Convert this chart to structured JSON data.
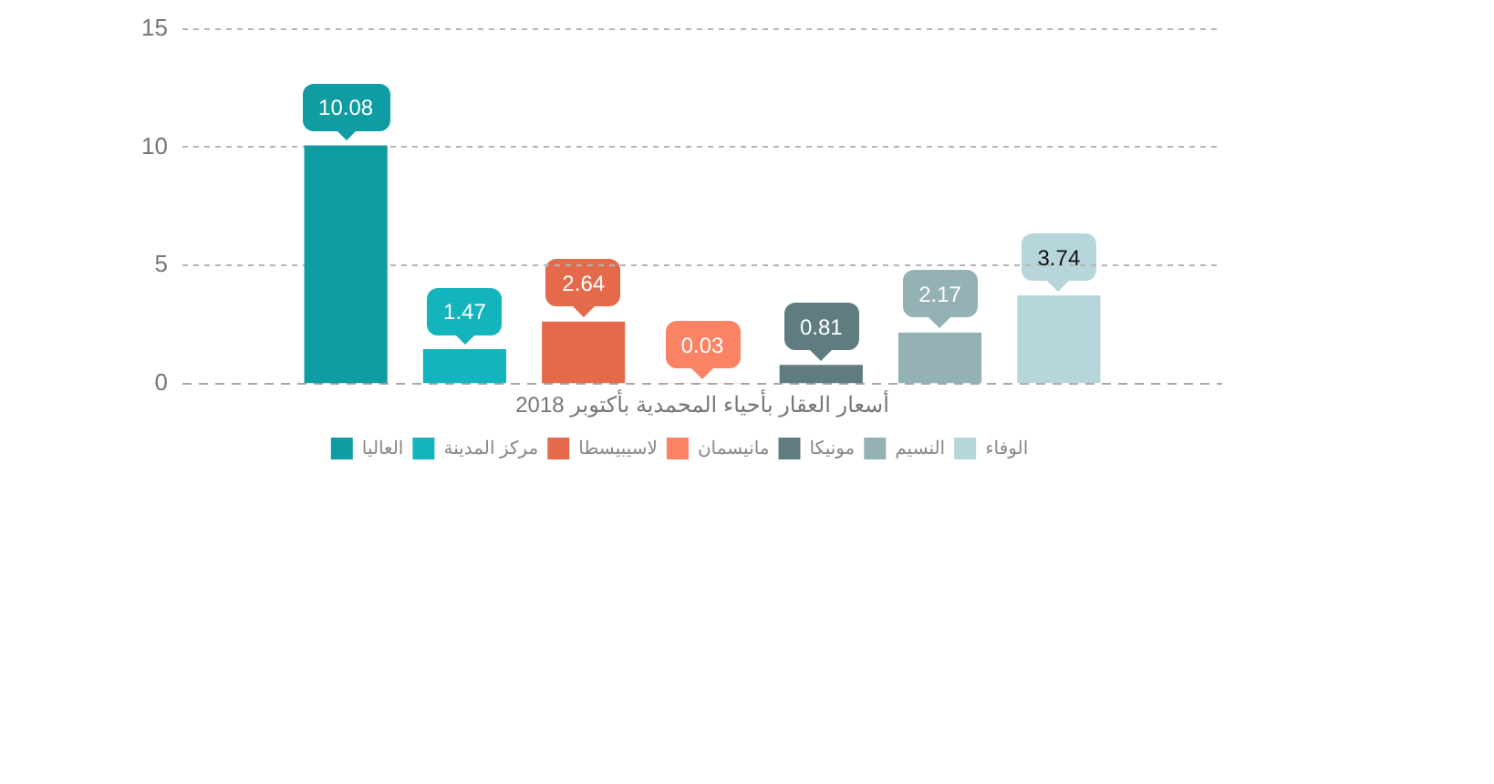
{
  "chart_data": {
    "type": "bar",
    "categories": [
      "أسعار العقار بأحياء المحمدية بأكتوبر 2018"
    ],
    "series": [
      {
        "name": "العاليا",
        "color": "#0f9ca3",
        "values": [
          10.08
        ]
      },
      {
        "name": "مركز المدينة",
        "color": "#13b4bc",
        "values": [
          1.47
        ]
      },
      {
        "name": "لاسيبيسطا",
        "color": "#e56a4b",
        "values": [
          2.64
        ]
      },
      {
        "name": "مانيسمان",
        "color": "#fa8265",
        "values": [
          0.03
        ]
      },
      {
        "name": "مونيكا",
        "color": "#5f7c81",
        "values": [
          0.81
        ]
      },
      {
        "name": "النسيم",
        "color": "#94b1b5",
        "values": [
          2.17
        ]
      },
      {
        "name": "الوفاء",
        "color": "#b7d6db",
        "values": [
          3.74
        ]
      }
    ],
    "ylim": [
      0,
      15
    ],
    "yticks": [
      0,
      5,
      10,
      15
    ],
    "grid": "y",
    "legend": "bottom",
    "data_labels": true
  }
}
